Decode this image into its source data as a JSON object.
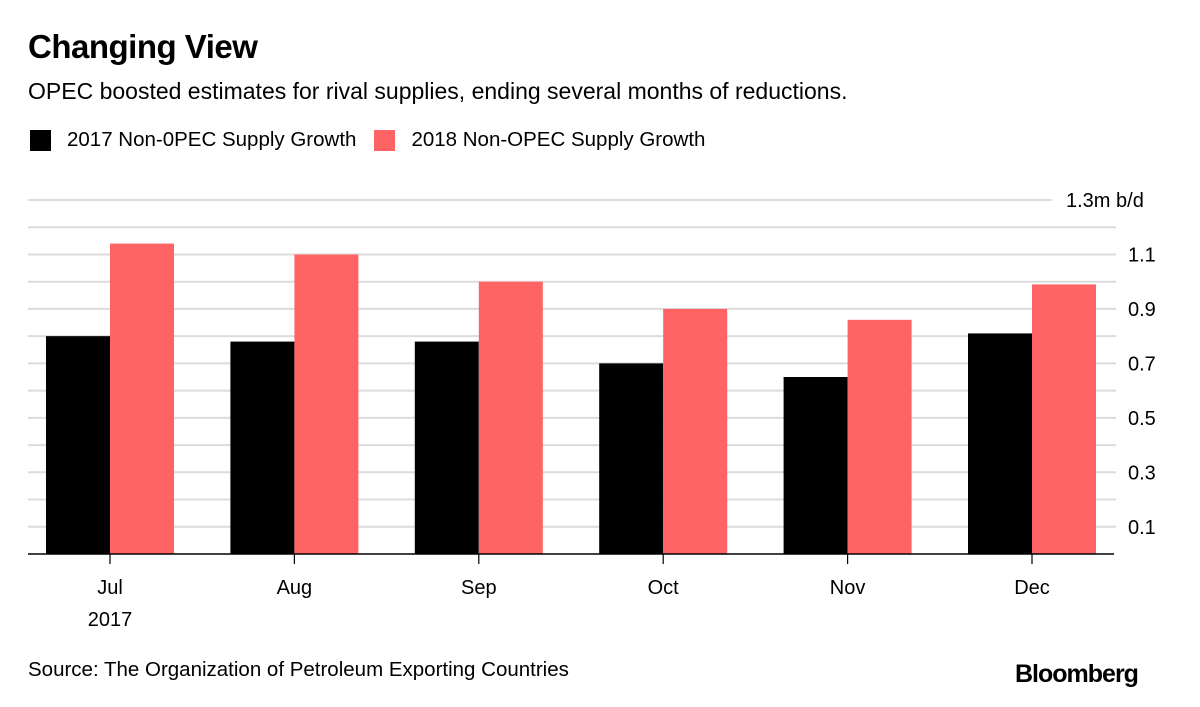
{
  "header": {
    "title": "Changing View",
    "subtitle": "OPEC boosted estimates for rival supplies, ending several months of reductions."
  },
  "legend": [
    {
      "label": "2017 Non-0PEC Supply Growth",
      "color": "#000000"
    },
    {
      "label": "2018 Non-OPEC Supply Growth",
      "color": "#FF6464"
    }
  ],
  "footer": {
    "source": "Source: The Organization of Petroleum Exporting Countries",
    "logo": "Bloomberg"
  },
  "chart_data": {
    "type": "bar",
    "title": "Changing View",
    "subtitle": "OPEC boosted estimates for rival supplies, ending several months of reductions.",
    "categories": [
      "Jul",
      "Aug",
      "Sep",
      "Oct",
      "Nov",
      "Dec"
    ],
    "category_sublabels": [
      "2017",
      "",
      "",
      "",
      "",
      ""
    ],
    "series": [
      {
        "name": "2017 Non-0PEC Supply Growth",
        "color": "#000000",
        "values": [
          0.8,
          0.78,
          0.78,
          0.7,
          0.65,
          0.81
        ]
      },
      {
        "name": "2018 Non-OPEC Supply Growth",
        "color": "#FF6464",
        "values": [
          1.14,
          1.1,
          1.0,
          0.9,
          0.86,
          0.99
        ]
      }
    ],
    "xlabel": "",
    "ylabel": "",
    "ylim": [
      0,
      1.3
    ],
    "y_ticks": [
      0.1,
      0.3,
      0.5,
      0.7,
      0.9,
      1.1,
      1.3
    ],
    "y_tick_labels": [
      "0.1",
      "0.3",
      "0.5",
      "0.7",
      "0.9",
      "1.1",
      "1.3m b/d"
    ],
    "y_gridlines": [
      0.1,
      0.2,
      0.3,
      0.4,
      0.5,
      0.6,
      0.7,
      0.8,
      0.9,
      1.0,
      1.1,
      1.2,
      1.3
    ],
    "y_axis_side": "right",
    "grid": true,
    "legend_position": "top-left"
  }
}
